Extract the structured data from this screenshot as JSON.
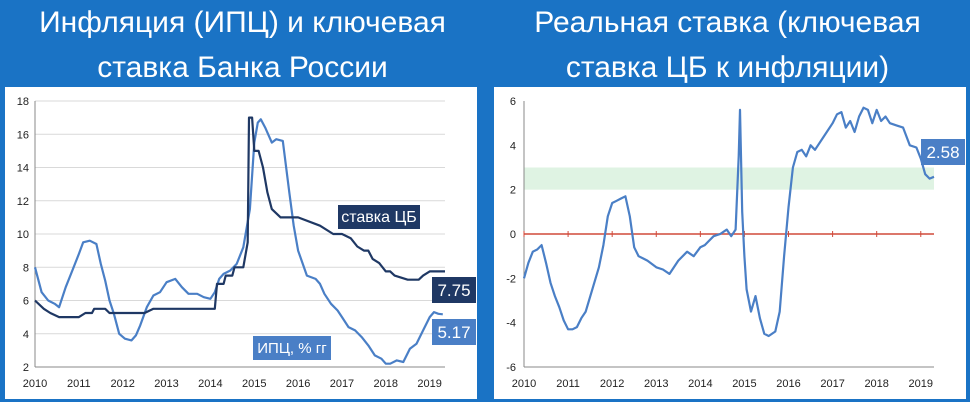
{
  "titles": {
    "left": [
      "Инфляция (ИПЦ) и ключевая",
      "ставка Банка России"
    ],
    "right": [
      "Реальная ставка (ключевая",
      "ставка ЦБ к инфляции)"
    ]
  },
  "colors": {
    "background": "#1a73c5",
    "cpi_line": "#4a7fc6",
    "key_rate_line": "#1f3864",
    "real_rate_line": "#4a7fc6",
    "zero_line": "#d04a3a",
    "target_band": "#dff3e3",
    "grid": "#d9d9d9"
  },
  "chart_data": [
    {
      "type": "line",
      "xlim": [
        2010,
        2019.35
      ],
      "ylim": [
        2,
        18
      ],
      "x_ticks": [
        "2010",
        "2011",
        "2012",
        "2013",
        "2014",
        "2015",
        "2016",
        "2017",
        "2018",
        "2019"
      ],
      "y_ticks": [
        "2",
        "4",
        "6",
        "8",
        "10",
        "12",
        "14",
        "16",
        "18"
      ],
      "annotations": {
        "key_rate_label": "ставка ЦБ",
        "cpi_label": "ИПЦ, % гг",
        "key_rate_last": "7.75",
        "cpi_last": "5.17"
      },
      "series": [
        {
          "id": "cpi",
          "x": [
            2010.0,
            2010.15,
            2010.3,
            2010.45,
            2010.55,
            2010.7,
            2010.85,
            2011.0,
            2011.1,
            2011.25,
            2011.4,
            2011.5,
            2011.6,
            2011.7,
            2011.8,
            2011.92,
            2012.05,
            2012.2,
            2012.3,
            2012.4,
            2012.55,
            2012.7,
            2012.85,
            2013.0,
            2013.2,
            2013.35,
            2013.5,
            2013.7,
            2013.85,
            2014.0,
            2014.1,
            2014.2,
            2014.3,
            2014.45,
            2014.6,
            2014.75,
            2014.9,
            2015.0,
            2015.08,
            2015.15,
            2015.25,
            2015.4,
            2015.5,
            2015.65,
            2015.8,
            2015.9,
            2016.0,
            2016.2,
            2016.4,
            2016.5,
            2016.6,
            2016.75,
            2016.9,
            2017.0,
            2017.15,
            2017.3,
            2017.45,
            2017.6,
            2017.75,
            2017.9,
            2018.0,
            2018.1,
            2018.25,
            2018.4,
            2018.55,
            2018.7,
            2018.85,
            2019.0,
            2019.1,
            2019.2,
            2019.3
          ],
          "y": [
            8.0,
            6.5,
            6.0,
            5.8,
            5.6,
            6.8,
            7.8,
            8.8,
            9.5,
            9.6,
            9.4,
            8.2,
            7.2,
            6.0,
            5.2,
            4.0,
            3.7,
            3.6,
            3.9,
            4.5,
            5.6,
            6.3,
            6.5,
            7.1,
            7.3,
            6.8,
            6.4,
            6.4,
            6.2,
            6.1,
            6.5,
            7.3,
            7.6,
            7.8,
            8.2,
            9.2,
            11.5,
            15.5,
            16.7,
            16.9,
            16.4,
            15.5,
            15.7,
            15.6,
            12.5,
            10.5,
            9.0,
            7.5,
            7.3,
            7.0,
            6.4,
            5.8,
            5.4,
            5.0,
            4.4,
            4.2,
            3.8,
            3.3,
            2.7,
            2.5,
            2.2,
            2.2,
            2.4,
            2.3,
            3.1,
            3.4,
            4.2,
            5.0,
            5.3,
            5.2,
            5.17
          ]
        },
        {
          "id": "key_rate",
          "x": [
            2010.0,
            2010.2,
            2010.35,
            2010.55,
            2010.7,
            2011.0,
            2011.15,
            2011.3,
            2011.35,
            2011.6,
            2011.7,
            2012.5,
            2012.7,
            2013.0,
            2013.3,
            2013.5,
            2014.0,
            2014.1,
            2014.15,
            2014.3,
            2014.35,
            2014.5,
            2014.55,
            2014.65,
            2014.75,
            2014.85,
            2014.88,
            2014.95,
            2015.0,
            2015.1,
            2015.2,
            2015.3,
            2015.4,
            2015.6,
            2016.0,
            2016.5,
            2016.8,
            2017.0,
            2017.2,
            2017.35,
            2017.5,
            2017.6,
            2017.7,
            2017.85,
            2018.0,
            2018.1,
            2018.2,
            2018.5,
            2018.75,
            2018.85,
            2019.0,
            2019.35
          ],
          "y": [
            6.0,
            5.5,
            5.25,
            5.0,
            5.0,
            5.0,
            5.25,
            5.25,
            5.5,
            5.5,
            5.25,
            5.25,
            5.5,
            5.5,
            5.5,
            5.5,
            5.5,
            5.5,
            7.0,
            7.0,
            7.5,
            7.5,
            8.0,
            8.0,
            8.0,
            9.5,
            17.0,
            17.0,
            15.0,
            15.0,
            14.0,
            12.5,
            11.5,
            11.0,
            11.0,
            10.5,
            10.0,
            10.0,
            9.75,
            9.25,
            9.0,
            9.0,
            8.5,
            8.25,
            7.75,
            7.75,
            7.5,
            7.25,
            7.25,
            7.5,
            7.75,
            7.75
          ]
        }
      ]
    },
    {
      "type": "line",
      "xlim": [
        2010,
        2019.3
      ],
      "ylim": [
        -6,
        6
      ],
      "x_ticks": [
        "2010",
        "2011",
        "2012",
        "2013",
        "2014",
        "2015",
        "2016",
        "2017",
        "2018",
        "2019"
      ],
      "y_ticks": [
        "-6",
        "-4",
        "-2",
        "0",
        "2",
        "4",
        "6"
      ],
      "target_band": [
        2,
        3
      ],
      "annotations": {
        "last_value": "2.58"
      },
      "series": [
        {
          "id": "real_rate",
          "x": [
            2010.0,
            2010.1,
            2010.2,
            2010.3,
            2010.4,
            2010.5,
            2010.6,
            2010.7,
            2010.8,
            2010.9,
            2011.0,
            2011.1,
            2011.2,
            2011.3,
            2011.4,
            2011.55,
            2011.7,
            2011.8,
            2011.9,
            2012.0,
            2012.1,
            2012.2,
            2012.3,
            2012.4,
            2012.5,
            2012.6,
            2012.7,
            2012.8,
            2013.0,
            2013.15,
            2013.3,
            2013.5,
            2013.7,
            2013.85,
            2014.0,
            2014.1,
            2014.2,
            2014.3,
            2014.45,
            2014.6,
            2014.7,
            2014.8,
            2014.87,
            2014.9,
            2014.95,
            2015.0,
            2015.05,
            2015.15,
            2015.25,
            2015.35,
            2015.45,
            2015.55,
            2015.7,
            2015.8,
            2015.9,
            2016.0,
            2016.1,
            2016.2,
            2016.3,
            2016.4,
            2016.5,
            2016.6,
            2016.8,
            2017.0,
            2017.1,
            2017.2,
            2017.3,
            2017.4,
            2017.5,
            2017.6,
            2017.7,
            2017.8,
            2017.9,
            2018.0,
            2018.1,
            2018.2,
            2018.3,
            2018.45,
            2018.6,
            2018.75,
            2018.9,
            2019.0,
            2019.1,
            2019.2,
            2019.3
          ],
          "y": [
            -2.0,
            -1.3,
            -0.8,
            -0.7,
            -0.5,
            -1.3,
            -2.2,
            -2.8,
            -3.3,
            -3.9,
            -4.3,
            -4.3,
            -4.2,
            -3.8,
            -3.5,
            -2.5,
            -1.5,
            -0.5,
            0.8,
            1.4,
            1.5,
            1.6,
            1.7,
            0.8,
            -0.6,
            -1.0,
            -1.1,
            -1.2,
            -1.5,
            -1.6,
            -1.8,
            -1.2,
            -0.8,
            -1.0,
            -0.6,
            -0.5,
            -0.3,
            -0.1,
            0.0,
            0.2,
            -0.1,
            0.2,
            3.5,
            5.6,
            1.0,
            -1.0,
            -2.5,
            -3.5,
            -2.8,
            -3.8,
            -4.5,
            -4.6,
            -4.4,
            -3.5,
            -1.0,
            1.2,
            3.0,
            3.7,
            3.8,
            3.5,
            4.0,
            3.8,
            4.4,
            5.0,
            5.4,
            5.5,
            4.8,
            5.1,
            4.6,
            5.3,
            5.7,
            5.6,
            5.0,
            5.6,
            5.1,
            5.3,
            5.0,
            4.9,
            4.8,
            4.0,
            3.9,
            3.4,
            2.7,
            2.5,
            2.58
          ]
        }
      ]
    }
  ]
}
